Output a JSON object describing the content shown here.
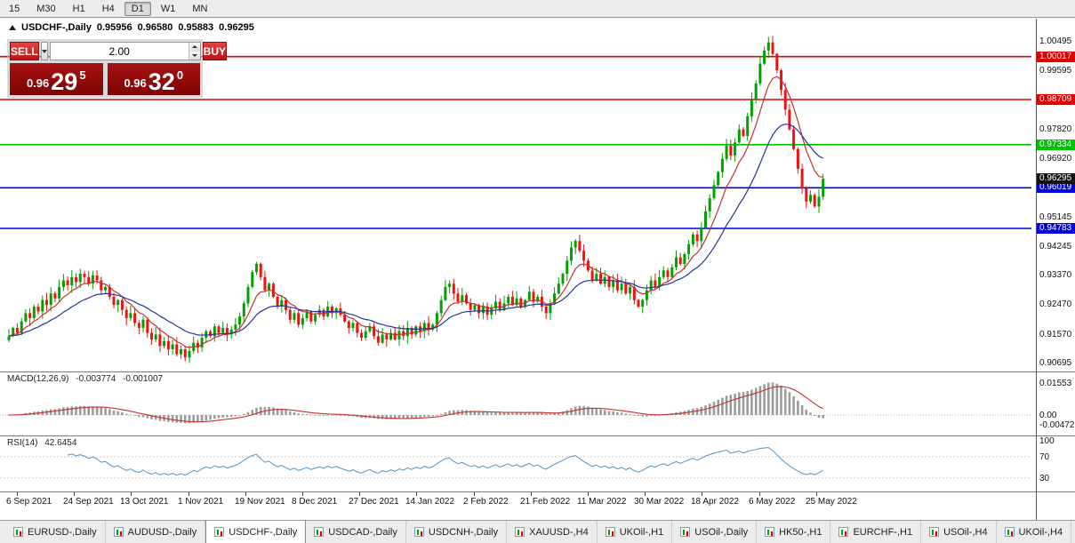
{
  "timeframe_bar": {
    "buttons": [
      "15",
      "M30",
      "H1",
      "H4",
      "D1",
      "W1",
      "MN"
    ],
    "active": "D1"
  },
  "chart_header": {
    "symbol": "USDCHF-,Daily",
    "open": "0.95956",
    "high": "0.96580",
    "low": "0.95883",
    "close": "0.96295"
  },
  "trade_panel": {
    "sell_label": "SELL",
    "buy_label": "BUY",
    "lot_size": "2.00",
    "sell_price": {
      "prefix": "0.96",
      "big": "29",
      "sup": "5"
    },
    "buy_price": {
      "prefix": "0.96",
      "big": "32",
      "sup": "0"
    }
  },
  "chart_data": {
    "type": "candlestick",
    "symbol": "USDCHF-",
    "timeframe": "Daily",
    "ylim": [
      0.90695,
      1.00495
    ],
    "candle_up_color": "#00a000",
    "candle_down_color": "#ef1212",
    "price_axis_labels": [
      "1.00495",
      "0.99595",
      "0.98695",
      "0.97820",
      "0.96920",
      "0.96020",
      "0.95145",
      "0.94245",
      "0.93370",
      "0.92470",
      "0.91570",
      "0.90695"
    ],
    "levels": [
      {
        "value": 1.00017,
        "label": "1.00017",
        "color": "#e00000"
      },
      {
        "value": 0.98709,
        "label": "0.98709",
        "color": "#e00000"
      },
      {
        "value": 0.97334,
        "label": "0.97334",
        "color": "#00c000"
      },
      {
        "value": 0.96019,
        "label": "0.96019",
        "color": "#0000dd"
      },
      {
        "value": 0.94783,
        "label": "0.94783",
        "color": "#0000dd"
      }
    ],
    "current_price": {
      "value": 0.96295,
      "label": "0.96295",
      "color": "#111111"
    },
    "moving_averages": [
      {
        "name": "fast",
        "color": "#c43030"
      },
      {
        "name": "slow",
        "color": "#24349e"
      }
    ],
    "closes": [
      0.915,
      0.9175,
      0.916,
      0.9195,
      0.922,
      0.9205,
      0.924,
      0.9225,
      0.926,
      0.9245,
      0.928,
      0.9265,
      0.93,
      0.932,
      0.9305,
      0.933,
      0.9315,
      0.934,
      0.933,
      0.931,
      0.9335,
      0.932,
      0.929,
      0.93,
      0.927,
      0.9245,
      0.926,
      0.923,
      0.9205,
      0.922,
      0.919,
      0.9175,
      0.92,
      0.916,
      0.914,
      0.9155,
      0.912,
      0.9135,
      0.911,
      0.9125,
      0.9095,
      0.911,
      0.9085,
      0.9105,
      0.913,
      0.9115,
      0.9145,
      0.9165,
      0.915,
      0.918,
      0.916,
      0.9175,
      0.9155,
      0.917,
      0.9185,
      0.921,
      0.925,
      0.93,
      0.9345,
      0.937,
      0.933,
      0.929,
      0.931,
      0.927,
      0.924,
      0.926,
      0.923,
      0.92,
      0.922,
      0.9185,
      0.9205,
      0.9225,
      0.9195,
      0.9215,
      0.923,
      0.921,
      0.924,
      0.922,
      0.9235,
      0.9215,
      0.9195,
      0.9175,
      0.919,
      0.916,
      0.9145,
      0.9165,
      0.918,
      0.915,
      0.913,
      0.9155,
      0.914,
      0.916,
      0.914,
      0.9165,
      0.915,
      0.9175,
      0.9155,
      0.918,
      0.9165,
      0.919,
      0.917,
      0.9185,
      0.922,
      0.926,
      0.93,
      0.931,
      0.928,
      0.9255,
      0.9275,
      0.925,
      0.923,
      0.9245,
      0.922,
      0.924,
      0.9215,
      0.9235,
      0.9255,
      0.923,
      0.925,
      0.927,
      0.9245,
      0.9265,
      0.924,
      0.926,
      0.9285,
      0.9255,
      0.927,
      0.924,
      0.922,
      0.925,
      0.928,
      0.931,
      0.934,
      0.938,
      0.942,
      0.944,
      0.941,
      0.938,
      0.935,
      0.932,
      0.934,
      0.931,
      0.933,
      0.93,
      0.932,
      0.929,
      0.931,
      0.928,
      0.93,
      0.926,
      0.924,
      0.926,
      0.929,
      0.932,
      0.93,
      0.933,
      0.935,
      0.933,
      0.936,
      0.939,
      0.937,
      0.94,
      0.943,
      0.946,
      0.944,
      0.948,
      0.953,
      0.957,
      0.961,
      0.965,
      0.969,
      0.973,
      0.97,
      0.974,
      0.978,
      0.976,
      0.982,
      0.987,
      0.992,
      0.998,
      1.002,
      1.0045,
      1.001,
      0.996,
      0.99,
      0.984,
      0.978,
      0.972,
      0.966,
      0.96,
      0.956,
      0.958,
      0.9545,
      0.9575,
      0.96295
    ],
    "dates": [
      "6 Sep 2021",
      "24 Sep 2021",
      "13 Oct 2021",
      "1 Nov 2021",
      "19 Nov 2021",
      "8 Dec 2021",
      "27 Dec 2021",
      "14 Jan 2022",
      "2 Feb 2022",
      "21 Feb 2022",
      "11 Mar 2022",
      "30 Mar 2022",
      "18 Apr 2022",
      "6 May 2022",
      "25 May 2022"
    ],
    "macd": {
      "title": "MACD(12,26,9)",
      "value": "-0.003774",
      "signal_value": "-0.001007",
      "axis_labels": [
        "0.01553",
        "0.00",
        "-0.00472"
      ],
      "histogram_color": "#9c9c9c",
      "signal_color": "#c43030"
    },
    "rsi": {
      "title": "RSI(14)",
      "value": "42.6454",
      "axis_labels": [
        "100",
        "70",
        "30"
      ],
      "levels": [
        70,
        30
      ],
      "line_color": "#4f94cd"
    }
  },
  "bottom_tabs": {
    "active": "USDCHF-,Daily",
    "tabs": [
      "EURUSD-,Daily",
      "AUDUSD-,Daily",
      "USDCHF-,Daily",
      "USDCAD-,Daily",
      "USDCNH-,Daily",
      "XAUUSD-,H4",
      "UKOil-,H1",
      "USOil-,Daily",
      "HK50-,H1",
      "EURCHF-,H1",
      "USOil-,H4",
      "UKOil-,H4"
    ]
  }
}
